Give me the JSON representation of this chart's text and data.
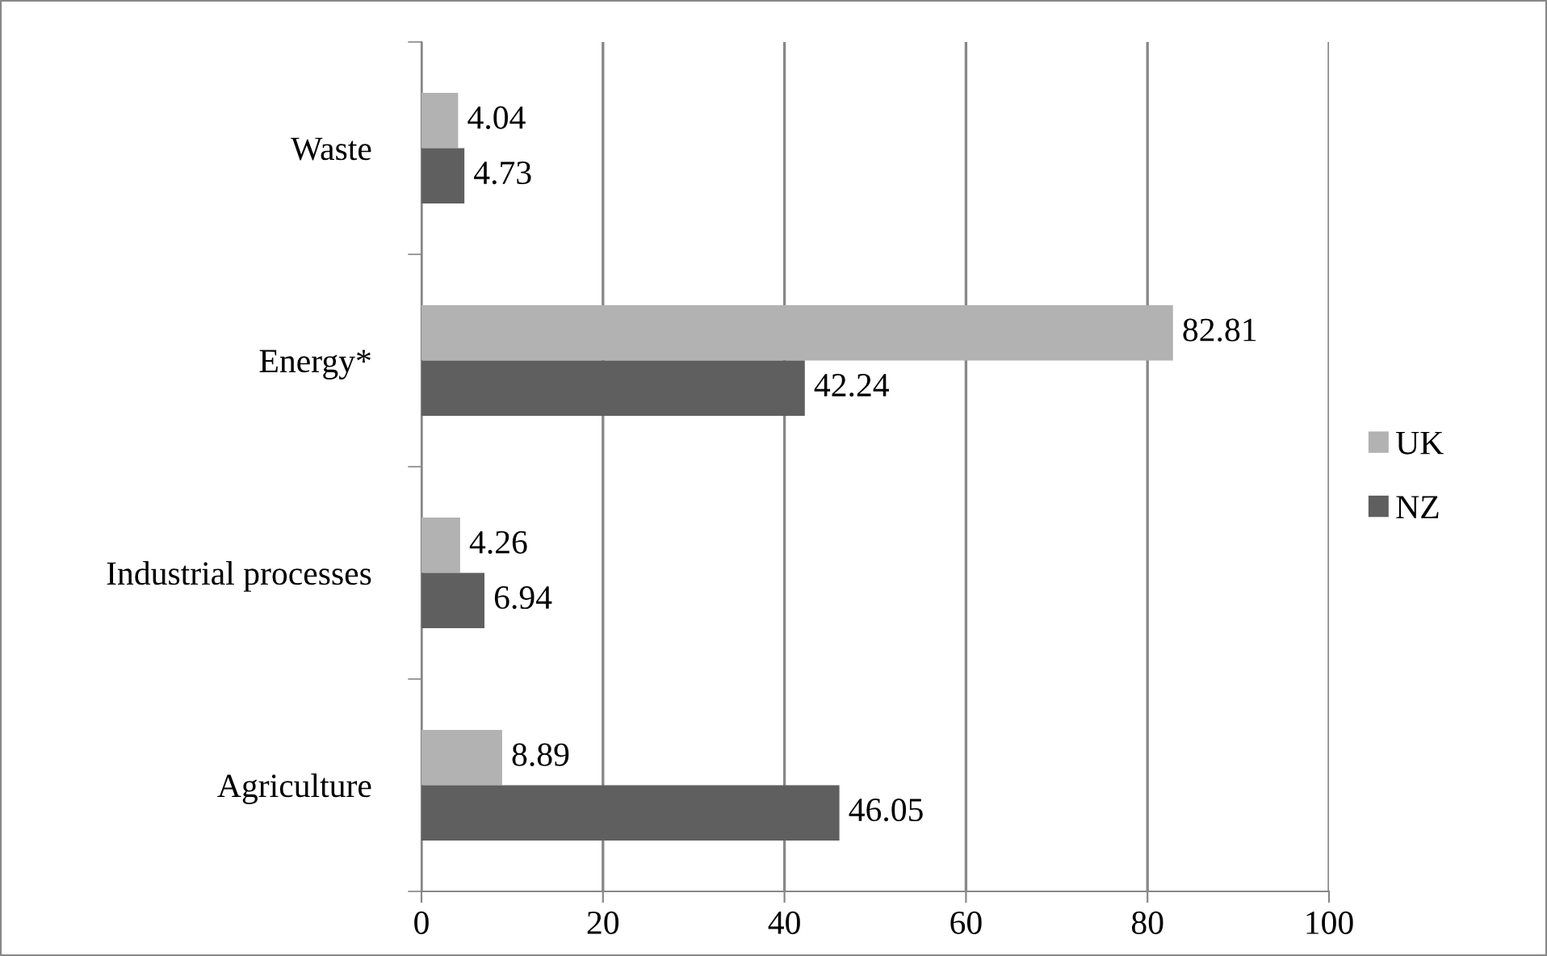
{
  "chart_data": {
    "type": "bar",
    "orientation": "horizontal",
    "categories": [
      "Waste",
      "Energy*",
      "Industrial processes",
      "Agriculture"
    ],
    "series": [
      {
        "name": "UK",
        "color": "#b2b2b2",
        "values": [
          4.04,
          82.81,
          4.26,
          8.89
        ]
      },
      {
        "name": "NZ",
        "color": "#5f5f5f",
        "values": [
          4.73,
          42.24,
          6.94,
          46.05
        ]
      }
    ],
    "xlim": [
      0,
      100
    ],
    "xticks": [
      0,
      20,
      40,
      60,
      80,
      100
    ],
    "grid": "x",
    "legend": "right",
    "data_labels": true
  }
}
